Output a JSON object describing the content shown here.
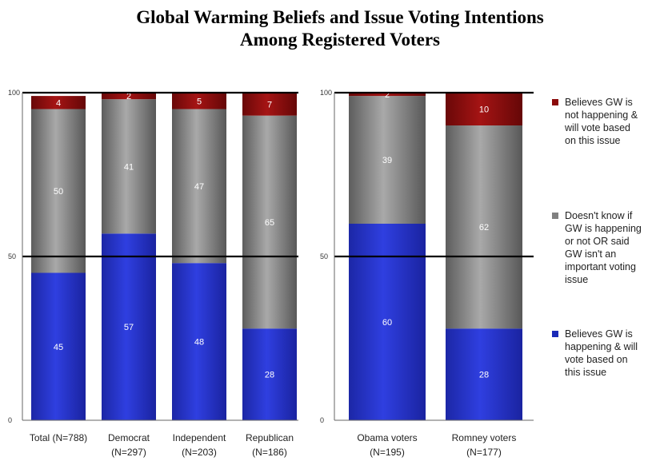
{
  "title_line1": "Global Warming Beliefs and Issue Voting Intentions",
  "title_line2": "Among Registered Voters",
  "chart_data": [
    {
      "type": "bar",
      "stacked": true,
      "yticks": [
        0,
        50,
        100
      ],
      "ylim": [
        0,
        100
      ],
      "categories": [
        {
          "line1": "Total (N=788)",
          "line2": ""
        },
        {
          "line1": "Democrat",
          "line2": "(N=297)"
        },
        {
          "line1": "Independent",
          "line2": "(N=203)"
        },
        {
          "line1": "Republican",
          "line2": "(N=186)"
        }
      ],
      "series": [
        {
          "name": "Believes GW is happening & will vote based on this issue",
          "values": [
            45,
            57,
            48,
            28
          ]
        },
        {
          "name": "Doesn't know if GW is happening or not OR said GW isn't an important voting issue",
          "values": [
            50,
            41,
            47,
            65
          ]
        },
        {
          "name": "Believes GW is not happening & will vote based on this issue",
          "values": [
            4,
            2,
            5,
            7
          ]
        }
      ]
    },
    {
      "type": "bar",
      "stacked": true,
      "yticks": [
        0,
        50,
        100
      ],
      "ylim": [
        0,
        100
      ],
      "categories": [
        {
          "line1": "Obama voters",
          "line2": "(N=195)"
        },
        {
          "line1": "Romney voters",
          "line2": "(N=177)"
        }
      ],
      "series": [
        {
          "name": "Believes GW is happening & will vote based on this issue",
          "values": [
            60,
            28
          ]
        },
        {
          "name": "Doesn't know if GW is happening or not OR said GW isn't an important voting issue",
          "values": [
            39,
            62
          ]
        },
        {
          "name": "Believes GW is not happening & will vote based on this issue",
          "values": [
            2,
            10
          ]
        }
      ]
    }
  ],
  "legend": [
    {
      "label": "Believes GW is not happening & will vote based on this issue",
      "lines": [
        "Believes GW is",
        "not happening &",
        "will vote based",
        "on this issue"
      ],
      "color": "#8b0a0a"
    },
    {
      "label": "Doesn't know if GW is happening or not OR said GW isn't an important voting issue",
      "lines": [
        "Doesn't know if",
        "GW is happening",
        "or not OR said",
        "GW isn't an",
        "important voting",
        "issue"
      ],
      "color": "#808080"
    },
    {
      "label": "Believes GW is happening & will vote based on this issue",
      "lines": [
        "Believes GW is",
        "happening & will",
        "vote based on",
        "this issue"
      ],
      "color": "#1a2ab8"
    }
  ],
  "colors": {
    "happening": "#1a2ab8",
    "dontknow": "#808080",
    "nothappening": "#8b0a0a"
  }
}
